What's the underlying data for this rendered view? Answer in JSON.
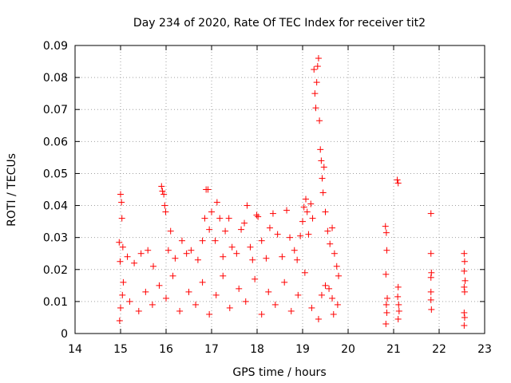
{
  "chart_data": {
    "type": "scatter",
    "title": "Day 234 of 2020, Rate Of TEC Index for receiver tit2",
    "xlabel": "GPS time / hours",
    "ylabel": "ROTI / TECUs",
    "xlim": [
      14,
      23
    ],
    "ylim": [
      0,
      0.09
    ],
    "xticks": [
      "14",
      "15",
      "16",
      "17",
      "18",
      "19",
      "20",
      "21",
      "22",
      "23"
    ],
    "yticks": [
      "0",
      "0.01",
      "0.02",
      "0.03",
      "0.04",
      "0.05",
      "0.06",
      "0.07",
      "0.08",
      "0.09"
    ],
    "grid": true,
    "marker": "+",
    "color": "#ff0000",
    "series": [
      {
        "name": "ROTI",
        "points": [
          [
            14.97,
            0.0285
          ],
          [
            14.99,
            0.0225
          ],
          [
            15.0,
            0.0435
          ],
          [
            15.02,
            0.041
          ],
          [
            15.03,
            0.036
          ],
          [
            15.05,
            0.027
          ],
          [
            15.0,
            0.008
          ],
          [
            15.04,
            0.012
          ],
          [
            14.98,
            0.004
          ],
          [
            15.06,
            0.016
          ],
          [
            15.15,
            0.024
          ],
          [
            15.3,
            0.022
          ],
          [
            15.45,
            0.025
          ],
          [
            15.6,
            0.026
          ],
          [
            15.72,
            0.021
          ],
          [
            15.9,
            0.046
          ],
          [
            15.92,
            0.0445
          ],
          [
            15.95,
            0.0435
          ],
          [
            15.97,
            0.04
          ],
          [
            15.99,
            0.038
          ],
          [
            16.05,
            0.026
          ],
          [
            16.1,
            0.032
          ],
          [
            16.2,
            0.0235
          ],
          [
            16.35,
            0.029
          ],
          [
            16.45,
            0.025
          ],
          [
            16.55,
            0.026
          ],
          [
            16.7,
            0.023
          ],
          [
            16.8,
            0.029
          ],
          [
            16.85,
            0.036
          ],
          [
            16.88,
            0.045
          ],
          [
            16.92,
            0.045
          ],
          [
            16.95,
            0.0325
          ],
          [
            17.0,
            0.038
          ],
          [
            17.08,
            0.029
          ],
          [
            17.12,
            0.041
          ],
          [
            17.18,
            0.036
          ],
          [
            17.25,
            0.024
          ],
          [
            17.3,
            0.032
          ],
          [
            17.38,
            0.036
          ],
          [
            17.45,
            0.027
          ],
          [
            17.55,
            0.025
          ],
          [
            17.65,
            0.0325
          ],
          [
            17.72,
            0.0345
          ],
          [
            17.78,
            0.04
          ],
          [
            17.85,
            0.027
          ],
          [
            17.9,
            0.023
          ],
          [
            17.99,
            0.037
          ],
          [
            18.02,
            0.0365
          ],
          [
            18.1,
            0.029
          ],
          [
            18.2,
            0.0235
          ],
          [
            18.28,
            0.033
          ],
          [
            18.35,
            0.0375
          ],
          [
            18.45,
            0.031
          ],
          [
            18.55,
            0.024
          ],
          [
            18.65,
            0.0385
          ],
          [
            18.72,
            0.03
          ],
          [
            18.82,
            0.026
          ],
          [
            18.88,
            0.023
          ],
          [
            18.95,
            0.0305
          ],
          [
            19.0,
            0.035
          ],
          [
            19.03,
            0.0395
          ],
          [
            19.07,
            0.042
          ],
          [
            19.1,
            0.038
          ],
          [
            19.13,
            0.031
          ],
          [
            19.18,
            0.0405
          ],
          [
            19.22,
            0.036
          ],
          [
            19.25,
            0.0825
          ],
          [
            19.27,
            0.075
          ],
          [
            19.29,
            0.0705
          ],
          [
            19.31,
            0.0785
          ],
          [
            19.33,
            0.0835
          ],
          [
            19.35,
            0.086
          ],
          [
            19.37,
            0.0665
          ],
          [
            19.39,
            0.0575
          ],
          [
            19.41,
            0.054
          ],
          [
            19.43,
            0.0485
          ],
          [
            19.45,
            0.044
          ],
          [
            19.47,
            0.052
          ],
          [
            19.5,
            0.038
          ],
          [
            19.55,
            0.032
          ],
          [
            19.6,
            0.028
          ],
          [
            19.65,
            0.033
          ],
          [
            19.7,
            0.025
          ],
          [
            19.75,
            0.021
          ],
          [
            19.79,
            0.018
          ],
          [
            19.35,
            0.0045
          ],
          [
            19.42,
            0.012
          ],
          [
            19.58,
            0.014
          ],
          [
            19.68,
            0.006
          ],
          [
            19.77,
            0.009
          ],
          [
            20.82,
            0.0335
          ],
          [
            20.84,
            0.0315
          ],
          [
            20.85,
            0.026
          ],
          [
            20.83,
            0.0185
          ],
          [
            20.86,
            0.011
          ],
          [
            20.84,
            0.009
          ],
          [
            20.85,
            0.0065
          ],
          [
            20.83,
            0.003
          ],
          [
            21.08,
            0.048
          ],
          [
            21.1,
            0.047
          ],
          [
            21.1,
            0.0145
          ],
          [
            21.09,
            0.0115
          ],
          [
            21.11,
            0.009
          ],
          [
            21.12,
            0.007
          ],
          [
            21.1,
            0.0045
          ],
          [
            21.82,
            0.0375
          ],
          [
            21.82,
            0.025
          ],
          [
            21.83,
            0.019
          ],
          [
            21.82,
            0.0175
          ],
          [
            21.82,
            0.013
          ],
          [
            21.82,
            0.0105
          ],
          [
            21.83,
            0.0075
          ],
          [
            22.55,
            0.025
          ],
          [
            22.56,
            0.0225
          ],
          [
            22.55,
            0.0195
          ],
          [
            22.57,
            0.0165
          ],
          [
            22.55,
            0.0145
          ],
          [
            22.56,
            0.013
          ],
          [
            22.55,
            0.0065
          ],
          [
            22.56,
            0.005
          ],
          [
            22.55,
            0.0025
          ],
          [
            15.2,
            0.01
          ],
          [
            15.4,
            0.007
          ],
          [
            15.55,
            0.013
          ],
          [
            15.7,
            0.009
          ],
          [
            15.85,
            0.015
          ],
          [
            16.0,
            0.011
          ],
          [
            16.15,
            0.018
          ],
          [
            16.3,
            0.007
          ],
          [
            16.5,
            0.013
          ],
          [
            16.65,
            0.009
          ],
          [
            16.8,
            0.016
          ],
          [
            16.95,
            0.006
          ],
          [
            17.1,
            0.012
          ],
          [
            17.25,
            0.018
          ],
          [
            17.4,
            0.008
          ],
          [
            17.6,
            0.014
          ],
          [
            17.75,
            0.01
          ],
          [
            17.95,
            0.017
          ],
          [
            18.1,
            0.006
          ],
          [
            18.25,
            0.013
          ],
          [
            18.4,
            0.009
          ],
          [
            18.6,
            0.016
          ],
          [
            18.75,
            0.007
          ],
          [
            18.9,
            0.012
          ],
          [
            19.05,
            0.019
          ],
          [
            19.2,
            0.008
          ],
          [
            19.5,
            0.015
          ],
          [
            19.65,
            0.011
          ]
        ]
      }
    ]
  }
}
